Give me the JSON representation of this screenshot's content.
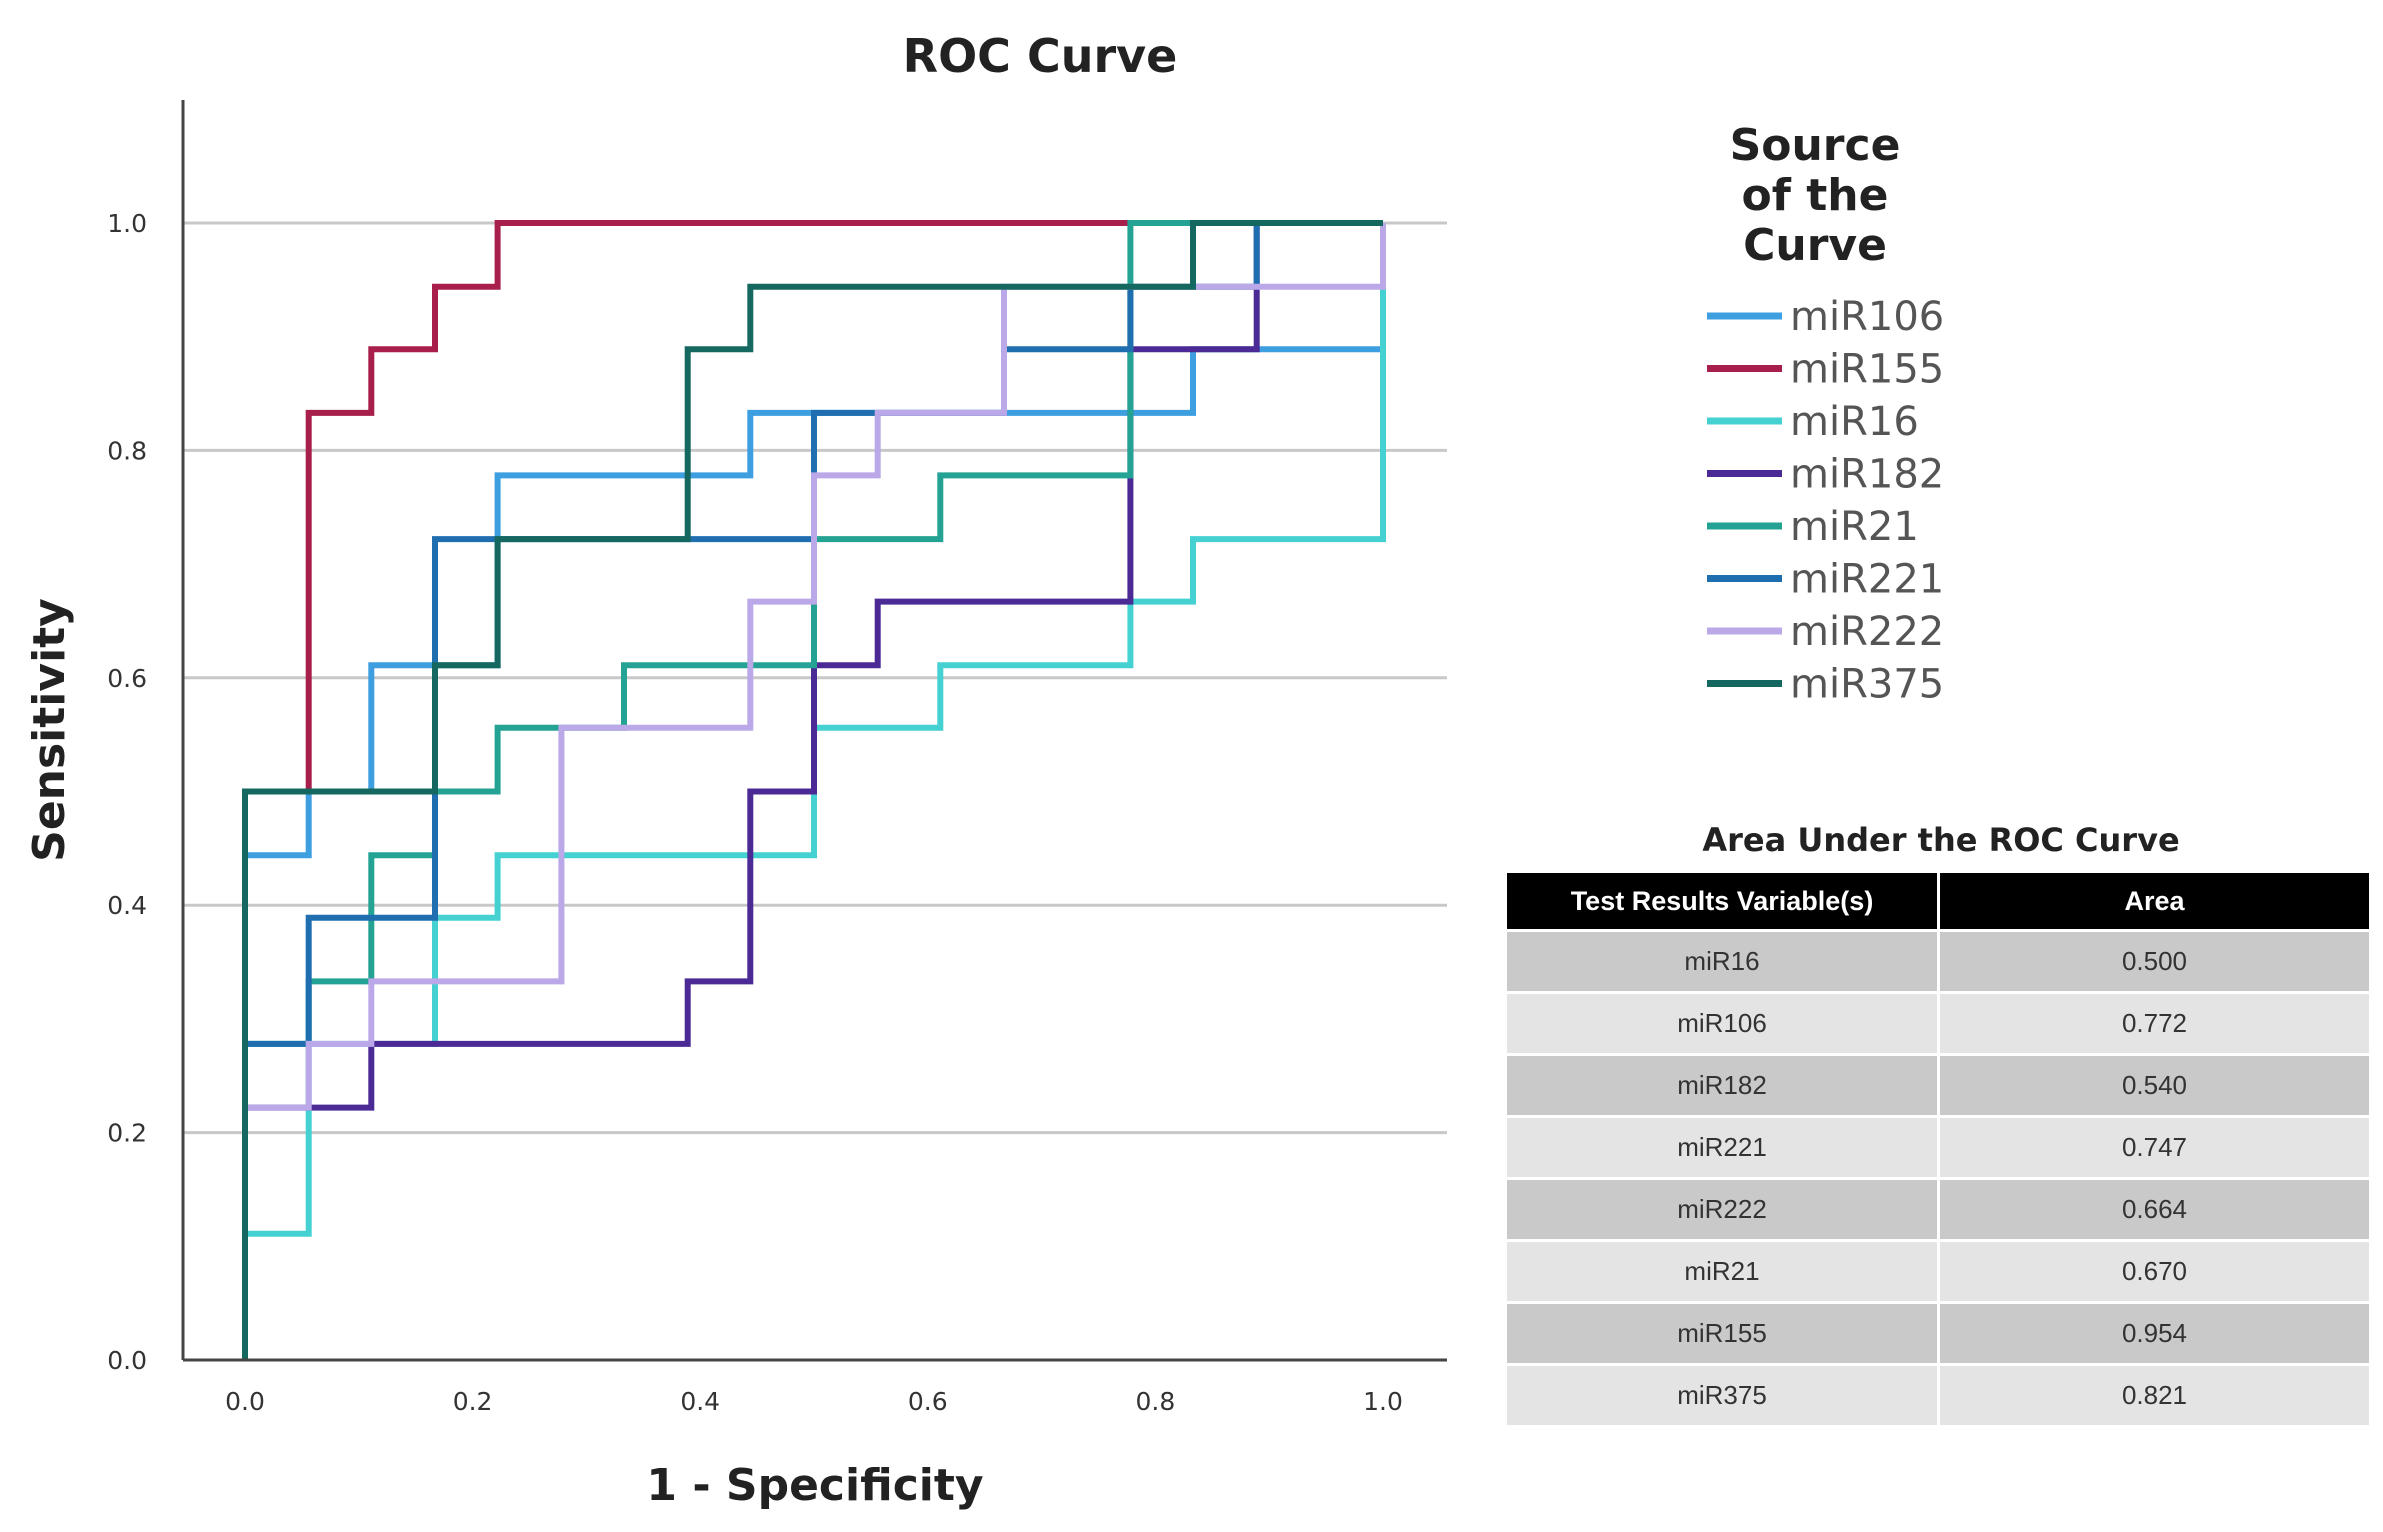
{
  "chart_data": {
    "type": "line",
    "title": "ROC Curve",
    "xlabel": "1 - Specificity",
    "ylabel": "Sensitivity",
    "xlim": [
      -0.05,
      1.05
    ],
    "ylim": [
      0,
      1.12
    ],
    "xticks": [
      "0.0",
      "0.2",
      "0.4",
      "0.6",
      "0.8",
      "1.0"
    ],
    "yticks": [
      "0.0",
      "0.2",
      "0.4",
      "0.6",
      "0.8",
      "1.0"
    ],
    "gridlines": "horizontal",
    "legend": {
      "title_lines": [
        "Source",
        "of the",
        "Curve"
      ],
      "placement": "right"
    },
    "series": [
      {
        "name": "miR106",
        "color": "#3d9ee0",
        "x": [
          0,
          0,
          0.056,
          0.056,
          0.111,
          0.111,
          0.222,
          0.222,
          0.444,
          0.444,
          0.833,
          0.833,
          1,
          1
        ],
        "y": [
          0,
          0.444,
          0.444,
          0.5,
          0.5,
          0.611,
          0.611,
          0.778,
          0.778,
          0.833,
          0.833,
          0.889,
          0.889,
          1
        ]
      },
      {
        "name": "miR155",
        "color": "#a81f4c",
        "x": [
          0,
          0,
          0.056,
          0.056,
          0.111,
          0.111,
          0.167,
          0.167,
          0.222,
          0.222,
          1
        ],
        "y": [
          0,
          0.5,
          0.5,
          0.833,
          0.833,
          0.889,
          0.889,
          0.944,
          0.944,
          1,
          1
        ]
      },
      {
        "name": "miR16",
        "color": "#45d1d1",
        "x": [
          0,
          0,
          0.056,
          0.056,
          0.111,
          0.111,
          0.167,
          0.167,
          0.222,
          0.222,
          0.5,
          0.5,
          0.611,
          0.611,
          0.778,
          0.778,
          0.833,
          0.833,
          1,
          1
        ],
        "y": [
          0,
          0.111,
          0.111,
          0.278,
          0.278,
          0.278,
          0.278,
          0.389,
          0.389,
          0.444,
          0.444,
          0.556,
          0.556,
          0.611,
          0.611,
          0.667,
          0.667,
          0.722,
          0.722,
          1
        ]
      },
      {
        "name": "miR182",
        "color": "#4b2a96",
        "x": [
          0,
          0,
          0.056,
          0.056,
          0.111,
          0.111,
          0.389,
          0.389,
          0.444,
          0.444,
          0.5,
          0.5,
          0.556,
          0.556,
          0.778,
          0.778,
          0.889,
          0.889,
          1
        ],
        "y": [
          0,
          0.222,
          0.222,
          0.222,
          0.222,
          0.278,
          0.278,
          0.333,
          0.333,
          0.5,
          0.5,
          0.611,
          0.611,
          0.667,
          0.667,
          0.889,
          0.889,
          1,
          1
        ]
      },
      {
        "name": "miR21",
        "color": "#24a394",
        "x": [
          0,
          0,
          0.056,
          0.056,
          0.111,
          0.111,
          0.167,
          0.167,
          0.222,
          0.222,
          0.333,
          0.333,
          0.5,
          0.5,
          0.611,
          0.611,
          0.778,
          0.778,
          1
        ],
        "y": [
          0,
          0.278,
          0.278,
          0.333,
          0.333,
          0.444,
          0.444,
          0.5,
          0.5,
          0.556,
          0.556,
          0.611,
          0.611,
          0.722,
          0.722,
          0.778,
          0.778,
          1,
          1
        ]
      },
      {
        "name": "miR221",
        "color": "#1f6fb0",
        "x": [
          0,
          0,
          0.056,
          0.056,
          0.167,
          0.167,
          0.222,
          0.222,
          0.5,
          0.5,
          0.556,
          0.556,
          0.667,
          0.667,
          0.778,
          0.778,
          0.889,
          0.889,
          1
        ],
        "y": [
          0,
          0.278,
          0.278,
          0.389,
          0.389,
          0.722,
          0.722,
          0.722,
          0.722,
          0.833,
          0.833,
          0.833,
          0.833,
          0.889,
          0.889,
          0.944,
          0.944,
          1,
          1
        ]
      },
      {
        "name": "miR222",
        "color": "#bba8e8",
        "x": [
          0,
          0,
          0.056,
          0.056,
          0.111,
          0.111,
          0.278,
          0.278,
          0.444,
          0.444,
          0.5,
          0.5,
          0.556,
          0.556,
          0.667,
          0.667,
          1,
          1
        ],
        "y": [
          0,
          0.222,
          0.222,
          0.278,
          0.278,
          0.333,
          0.333,
          0.556,
          0.556,
          0.667,
          0.667,
          0.778,
          0.778,
          0.833,
          0.833,
          0.944,
          0.944,
          1
        ]
      },
      {
        "name": "miR375",
        "color": "#15685f",
        "x": [
          0,
          0,
          0.167,
          0.167,
          0.222,
          0.222,
          0.389,
          0.389,
          0.444,
          0.444,
          0.833,
          0.833,
          1
        ],
        "y": [
          0,
          0.5,
          0.5,
          0.611,
          0.611,
          0.722,
          0.722,
          0.889,
          0.889,
          0.944,
          0.944,
          1,
          1
        ]
      }
    ]
  },
  "auc_table": {
    "title": "Area Under the ROC Curve",
    "headers": [
      "Test Results Variable(s)",
      "Area"
    ],
    "rows": [
      [
        "miR16",
        "0.500"
      ],
      [
        "miR106",
        "0.772"
      ],
      [
        "miR182",
        "0.540"
      ],
      [
        "miR221",
        "0.747"
      ],
      [
        "miR222",
        "0.664"
      ],
      [
        "miR21",
        "0.670"
      ],
      [
        "miR155",
        "0.954"
      ],
      [
        "miR375",
        "0.821"
      ]
    ]
  }
}
